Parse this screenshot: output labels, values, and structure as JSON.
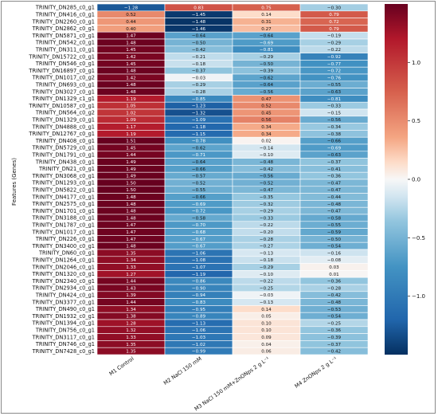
{
  "chart_data": {
    "type": "heatmap",
    "ylabel": "Features (Genes)",
    "columns": [
      "M1 Control",
      "M2 NaCl 150 mM",
      "M3 NaCl 150 mM+ZnONps 2 g L⁻¹",
      "M4 ZnONps 2 g L⁻¹"
    ],
    "rows": [
      "TRINITY_DN285_c0_g1",
      "TRINITY_DN416_c0_g1",
      "TRINITY_DN2260_c0_g1",
      "TRINITY_DN2862_c0_g1",
      "TRINITY_DN5871_c0_g1",
      "TRINITY_DN542_c0_g1",
      "TRINITY_DN311_c0_g1",
      "TRINITY_DN15722_c0_g1",
      "TRINITY_DN546_c0_g1",
      "TRINITY_DN16897_c0_g1",
      "TRINITY_DN1017_c0_g2",
      "TRINITY_DN693_c0_g1",
      "TRINITY_DN3027_c0_g1",
      "TRINITY_DN1329_c1_g1",
      "TRINITY_DN10587_c0_g1",
      "TRINITY_DN564_c0_g2",
      "TRINITY_DN1329_c0_g1",
      "TRINITY_DN4888_c0_g1",
      "TRINITY_DN12767_c0_g1",
      "TRINITY_DN408_c0_g1",
      "TRINITY_DN5729_c0_g1",
      "TRINITY_DN1791_c0_g1",
      "TRINITY_DN438_c0_g1",
      "TRINITY_DN21_c0_g1",
      "TRINITY_DN3068_c0_g1",
      "TRINITY_DN1293_c0_g1",
      "TRINITY_DN5822_c0_g1",
      "TRINITY_DN4177_c0_g1",
      "TRINITY_DN2575_c0_g1",
      "TRINITY_DN1701_c0_g1",
      "TRINITY_DN3188_c0_g1",
      "TRINITY_DN1787_c0_g1",
      "TRINITY_DN1017_c0_g1",
      "TRINITY_DN226_c0_g1",
      "TRINITY_DN3400_c0_g1",
      "TRINITY_DN60_c0_g1",
      "TRINITY_DN1264_c0_g1",
      "TRINITY_DN2046_c0_g1",
      "TRINITY_DN1320_c0_g1",
      "TRINITY_DN2340_c0_g1",
      "TRINITY_DN2934_c0_g1",
      "TRINITY_DN424_c0_g1",
      "TRINITY_DN3377_c0_g1",
      "TRINITY_DN490_c0_g1",
      "TRINITY_DN1932_c0_g1",
      "TRINITY_DN1394_c0_g1",
      "TRINITY_DN756_c0_g1",
      "TRINITY_DN3117_c0_g1",
      "TRINITY_DN746_c0_g1",
      "TRINITY_DN7428_c0_g1"
    ],
    "values": [
      [
        -1.28,
        0.83,
        0.75,
        -0.3
      ],
      [
        0.52,
        -1.45,
        0.14,
        0.79
      ],
      [
        0.44,
        -1.48,
        0.31,
        0.72
      ],
      [
        0.4,
        -1.46,
        0.27,
        0.79
      ],
      [
        1.47,
        -0.64,
        -0.64,
        -0.19
      ],
      [
        1.48,
        -0.5,
        -0.69,
        -0.29
      ],
      [
        1.45,
        -0.42,
        -0.81,
        -0.22
      ],
      [
        1.42,
        -0.21,
        -0.29,
        -0.92
      ],
      [
        1.45,
        -0.18,
        -0.5,
        -0.77
      ],
      [
        1.48,
        -0.37,
        -0.39,
        -0.72
      ],
      [
        1.42,
        -0.03,
        -0.62,
        -0.76
      ],
      [
        1.48,
        -0.29,
        -0.64,
        -0.55
      ],
      [
        1.48,
        -0.28,
        -0.56,
        -0.63
      ],
      [
        1.19,
        -0.85,
        0.47,
        -0.81
      ],
      [
        1.05,
        -1.23,
        0.52,
        -0.33
      ],
      [
        1.02,
        -1.32,
        0.45,
        -0.15
      ],
      [
        1.09,
        -1.09,
        0.56,
        -0.56
      ],
      [
        1.17,
        -1.18,
        0.34,
        -0.34
      ],
      [
        1.19,
        -1.15,
        0.34,
        -0.38
      ],
      [
        1.51,
        -0.78,
        0.02,
        -0.66
      ],
      [
        1.45,
        -0.62,
        -0.14,
        -0.69
      ],
      [
        1.44,
        -0.71,
        -0.1,
        -0.63
      ],
      [
        1.49,
        -0.64,
        -0.48,
        -0.37
      ],
      [
        1.49,
        -0.66,
        -0.42,
        -0.41
      ],
      [
        1.49,
        -0.57,
        -0.56,
        -0.36
      ],
      [
        1.5,
        -0.52,
        -0.52,
        -0.47
      ],
      [
        1.5,
        -0.55,
        -0.47,
        -0.47
      ],
      [
        1.48,
        -0.66,
        -0.35,
        -0.44
      ],
      [
        1.48,
        -0.69,
        -0.32,
        -0.48
      ],
      [
        1.48,
        -0.72,
        -0.29,
        -0.47
      ],
      [
        1.48,
        -0.58,
        -0.33,
        -0.58
      ],
      [
        1.47,
        -0.7,
        -0.22,
        -0.55
      ],
      [
        1.47,
        -0.68,
        -0.2,
        -0.59
      ],
      [
        1.47,
        -0.67,
        -0.28,
        -0.5
      ],
      [
        1.48,
        -0.67,
        -0.27,
        -0.54
      ],
      [
        1.35,
        -1.06,
        -0.13,
        -0.16
      ],
      [
        1.34,
        -1.08,
        -0.18,
        -0.08
      ],
      [
        1.33,
        -1.07,
        -0.29,
        0.03
      ],
      [
        1.27,
        -1.19,
        -0.1,
        0.01
      ],
      [
        1.44,
        -0.86,
        -0.22,
        -0.36
      ],
      [
        1.43,
        -0.9,
        -0.25,
        -0.28
      ],
      [
        1.39,
        -0.94,
        -0.03,
        -0.42
      ],
      [
        1.44,
        -0.83,
        -0.13,
        -0.48
      ],
      [
        1.34,
        -0.95,
        0.14,
        -0.53
      ],
      [
        1.38,
        -0.89,
        0.05,
        -0.54
      ],
      [
        1.28,
        -1.13,
        0.1,
        -0.25
      ],
      [
        1.32,
        -1.06,
        0.1,
        -0.36
      ],
      [
        1.33,
        -1.03,
        0.09,
        -0.39
      ],
      [
        1.35,
        -1.02,
        0.04,
        -0.37
      ],
      [
        1.35,
        -0.99,
        0.06,
        -0.42
      ]
    ],
    "colorbar": {
      "ticks": [
        1.0,
        0.5,
        0.0,
        -0.5,
        -1.0
      ],
      "tick_labels": [
        "1.0",
        "0.5",
        "0.0",
        "−0.5",
        "−1.0"
      ],
      "range": [
        -1.5,
        1.5
      ],
      "colors": {
        "low": "#053061",
        "mid": "#f7f7f7",
        "high": "#67001f"
      }
    },
    "grid": true,
    "legend": "right colorbar"
  }
}
